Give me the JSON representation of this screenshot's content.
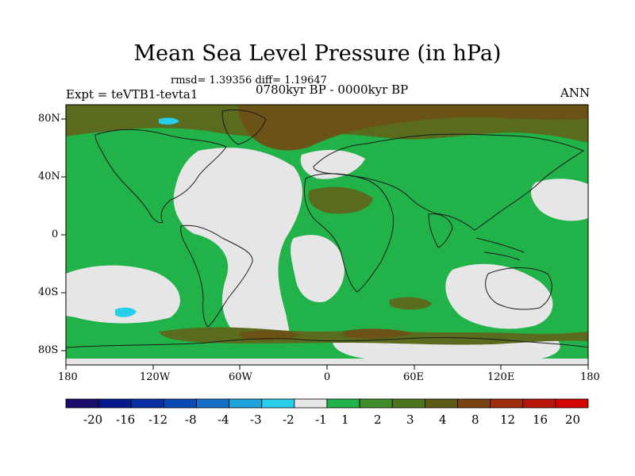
{
  "title": "Mean Sea Level Pressure (in hPa)",
  "stats": "rmsd= 1.39356 diff= 1.19647",
  "expt": "Expt = teVTB1-tevta1",
  "period": "0780kyr BP - 0000kyr BP",
  "season": "ANN",
  "y_ticks": [
    "80N",
    "40N",
    "0",
    "40S",
    "80S"
  ],
  "x_ticks": [
    "180",
    "120W",
    "60W",
    "0",
    "60E",
    "120E",
    "180"
  ],
  "colorbar": {
    "labels": [
      "-20",
      "-16",
      "-12",
      "-8",
      "-4",
      "-3",
      "-2",
      "-1",
      "1",
      "2",
      "3",
      "4",
      "8",
      "12",
      "16",
      "20"
    ],
    "colors": [
      "#1b0d6b",
      "#061a8c",
      "#0a2fa3",
      "#0a4ab4",
      "#1670c8",
      "#1ea3dc",
      "#28cfe9",
      "#e6e6e6",
      "#22b24a",
      "#3f8d2a",
      "#4d7420",
      "#5e5a18",
      "#7a4210",
      "#9c2c0c",
      "#b8140a",
      "#d40404"
    ]
  },
  "colors": {
    "ocean_base": "#22b24a",
    "near_zero": "#e6e6e6",
    "level_3_4": "#5a6b1e",
    "level_4_8": "#6b5216",
    "negative_small": "#28cfe9",
    "coast": "#1a1a1a"
  }
}
